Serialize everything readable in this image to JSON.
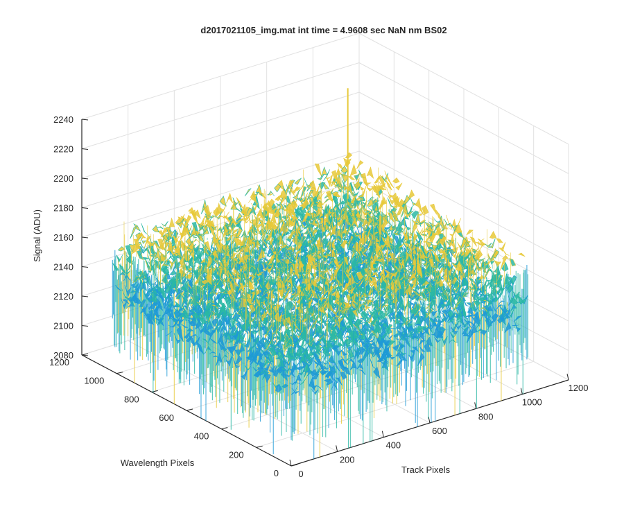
{
  "chart_data": {
    "type": "surface",
    "title": "d2017021105_img.mat int time = 4.9608 sec  NaN nm BS02",
    "xlabel": "Track Pixels",
    "ylabel": "Wavelength Pixels",
    "zlabel": "Signal (ADU)",
    "xlim": [
      0,
      1200
    ],
    "ylim": [
      0,
      1200
    ],
    "zlim": [
      2080,
      2240
    ],
    "xticks": [
      "0",
      "200",
      "400",
      "600",
      "800",
      "1000",
      "1200"
    ],
    "yticks": [
      "0",
      "200",
      "400",
      "600",
      "800",
      "1000",
      "1200"
    ],
    "zticks": [
      "2080",
      "2100",
      "2120",
      "2140",
      "2160",
      "2180",
      "2200",
      "2220",
      "2240"
    ],
    "grid": true,
    "colormap": "parula",
    "surface": {
      "x_range": [
        0,
        1024
      ],
      "y_range": [
        0,
        1024
      ],
      "mean": 2150,
      "noise_peak_to_peak": 60,
      "min_visible": 2080,
      "max_visible": 2230,
      "spike_location": {
        "x": 1000,
        "y": 1000,
        "z": 2225
      }
    },
    "colors": {
      "low": "#1e9ad6",
      "mid": "#2bb8a4",
      "high": "#e7c93a"
    }
  }
}
